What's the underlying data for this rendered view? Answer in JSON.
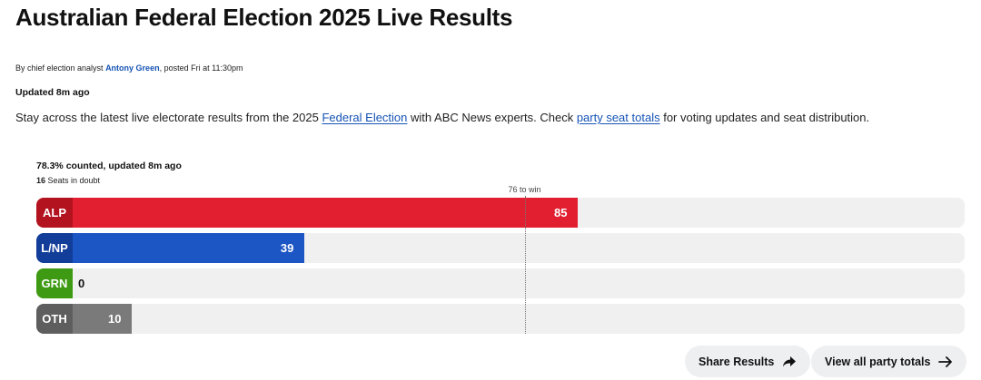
{
  "article": {
    "title": "Australian Federal Election 2025 Live Results",
    "byline_prefix": "By chief election analyst ",
    "author": "Antony Green",
    "byline_suffix": ", posted Fri at  11:30pm",
    "updated": "Updated 8m ago",
    "intro_1": "Stay across the latest live electorate results from the 2025 ",
    "intro_link_1": "Federal Election",
    "intro_2": " with ABC News experts. Check ",
    "intro_link_2": "party seat totals",
    "intro_3": " for voting updates and seat distribution."
  },
  "results": {
    "counted": "78.3% counted, updated 8m ago",
    "doubt_count": "16",
    "doubt_label": " Seats in doubt",
    "win_label": "76 to win",
    "win_threshold": 76,
    "scale_max": 150,
    "parties": [
      {
        "name": "ALP",
        "seats": 85,
        "color": "#e11f30",
        "tag_color": "#b3121f"
      },
      {
        "name": "L/NP",
        "seats": 39,
        "color": "#1c55c4",
        "tag_color": "#123d99"
      },
      {
        "name": "GRN",
        "seats": 0,
        "color": "#3f9a13",
        "tag_color": "#3f9a13"
      },
      {
        "name": "OTH",
        "seats": 10,
        "color": "#7a7a7a",
        "tag_color": "#5e5e5e"
      }
    ]
  },
  "actions": {
    "share_label": "Share Results",
    "view_all_label": "View all party totals"
  }
}
